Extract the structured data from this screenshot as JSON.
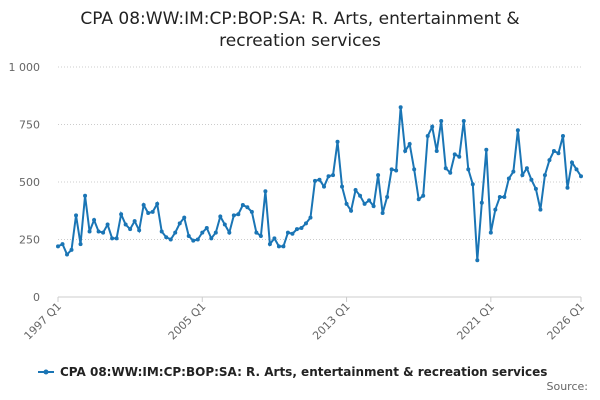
{
  "chart_data": {
    "type": "line",
    "title": "CPA 08:WW:IM:CP:BOP:SA: R. Arts, entertainment & recreation services",
    "source": "Source:",
    "categories": [
      "1997 Q1",
      null,
      null,
      null,
      null,
      null,
      null,
      null,
      null,
      null,
      null,
      null,
      null,
      null,
      null,
      null,
      null,
      null,
      null,
      null,
      null,
      null,
      null,
      null,
      null,
      null,
      null,
      null,
      null,
      null,
      null,
      null,
      "2005 Q1",
      null,
      null,
      null,
      null,
      null,
      null,
      null,
      null,
      null,
      null,
      null,
      null,
      null,
      null,
      null,
      null,
      null,
      null,
      null,
      null,
      null,
      null,
      null,
      null,
      null,
      null,
      null,
      null,
      null,
      null,
      null,
      "2013 Q1",
      null,
      null,
      null,
      null,
      null,
      null,
      null,
      null,
      null,
      null,
      null,
      null,
      null,
      null,
      null,
      null,
      null,
      null,
      null,
      null,
      null,
      null,
      null,
      null,
      null,
      null,
      null,
      null,
      null,
      null,
      null,
      "2021 Q1",
      null,
      null,
      null,
      null,
      null,
      null,
      null,
      null,
      null,
      null,
      null,
      null,
      null,
      null,
      null,
      null,
      null,
      null,
      null,
      "2026 Q1"
    ],
    "series": [
      {
        "name": "CPA 08:WW:IM:CP:BOP:SA: R. Arts, entertainment & recreation services",
        "color": "#1a75b5",
        "values": [
          220,
          230,
          185,
          205,
          355,
          230,
          440,
          285,
          335,
          285,
          280,
          315,
          255,
          255,
          360,
          315,
          295,
          330,
          290,
          400,
          365,
          370,
          405,
          285,
          260,
          250,
          280,
          320,
          345,
          265,
          245,
          250,
          280,
          300,
          255,
          280,
          350,
          315,
          280,
          355,
          360,
          400,
          390,
          370,
          280,
          265,
          460,
          230,
          255,
          220,
          220,
          280,
          275,
          295,
          300,
          320,
          345,
          505,
          510,
          480,
          525,
          530,
          675,
          480,
          405,
          375,
          465,
          440,
          405,
          420,
          395,
          530,
          365,
          435,
          555,
          550,
          825,
          635,
          665,
          555,
          425,
          440,
          700,
          740,
          635,
          765,
          560,
          540,
          620,
          610,
          765,
          555,
          490,
          160,
          410,
          640,
          280,
          380,
          435,
          435,
          515,
          545,
          725,
          530,
          560,
          510,
          470,
          380,
          530,
          595,
          635,
          625,
          700,
          475,
          585,
          555,
          525
        ]
      }
    ],
    "ylim": [
      0,
      1000
    ],
    "yticks": [
      0,
      250,
      500,
      750,
      {
        "value": 1000,
        "label": "1 000"
      }
    ],
    "grid": true
  }
}
